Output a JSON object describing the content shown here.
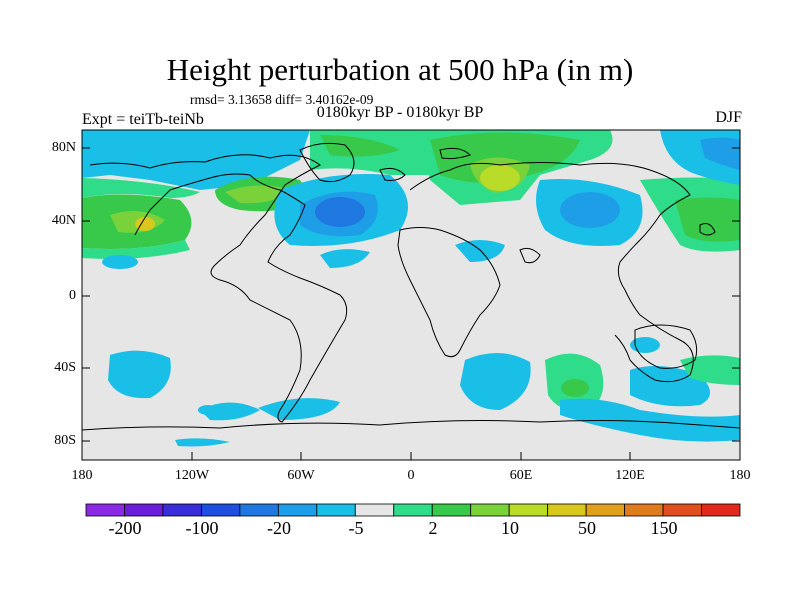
{
  "title": "Height perturbation at 500 hPa (in m)",
  "stats": "rmsd= 3.13658 diff= 3.40162e-09",
  "experiment": "Expt = teiTb-teiNb",
  "period": "0180kyr BP - 0180kyr BP",
  "season": "DJF",
  "axes": {
    "lat_labels": [
      "80N",
      "40N",
      "0",
      "40S",
      "80S"
    ],
    "lon_labels": [
      "180",
      "120W",
      "60W",
      "0",
      "60E",
      "120E",
      "180"
    ]
  },
  "colorbar": {
    "labels": [
      "-200",
      "-100",
      "-20",
      "-5",
      "2",
      "10",
      "50",
      "150"
    ],
    "colors": [
      "#8a2be2",
      "#6a1fd6",
      "#3a2fd6",
      "#1f4fdc",
      "#1e78e0",
      "#1e9ee6",
      "#19bfe6",
      "#e6e6e6",
      "#2fdc8a",
      "#38c94a",
      "#7ad23a",
      "#b8dc28",
      "#d8c81e",
      "#e0a01e",
      "#e07a1e",
      "#e0501e",
      "#e02a1e"
    ]
  }
}
